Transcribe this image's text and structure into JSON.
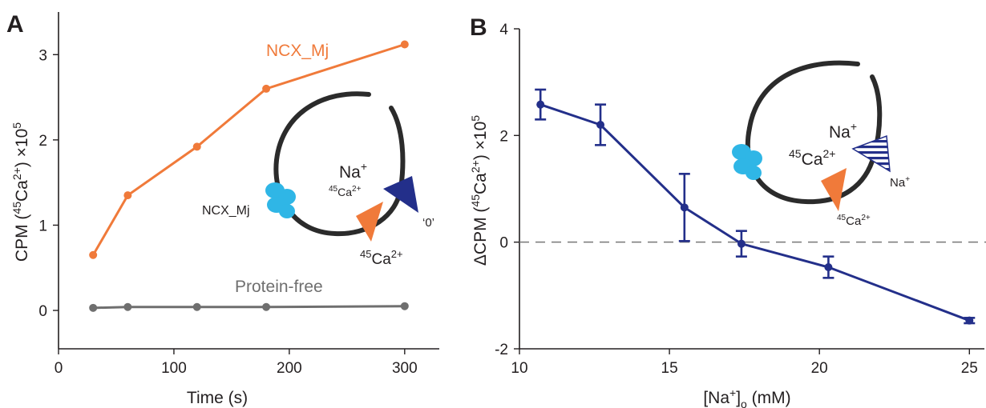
{
  "figure": {
    "panel_a_label": "A",
    "panel_b_label": "B"
  },
  "chart_data": [
    {
      "type": "line",
      "panel": "A",
      "xlabel": "Time (s)",
      "ylabel": {
        "base": "CPM (",
        "sup1": "45",
        "mid": "Ca",
        "sup2": "2+",
        "tail": ") ×10",
        "sup3": "5"
      },
      "xlim": [
        0,
        330
      ],
      "ylim": [
        -0.45,
        3.5
      ],
      "xticks": [
        0,
        100,
        200,
        300
      ],
      "yticks": [
        0,
        1,
        2,
        3
      ],
      "grid": false,
      "series": [
        {
          "name": "NCX_Mj",
          "color": "#f07a3a",
          "x": [
            30,
            60,
            120,
            180,
            300
          ],
          "y": [
            0.65,
            1.35,
            1.92,
            2.6,
            3.12
          ]
        },
        {
          "name": "Protein-free",
          "color": "#6f6f6f",
          "x": [
            30,
            60,
            120,
            180,
            300
          ],
          "y": [
            0.03,
            0.04,
            0.04,
            0.04,
            0.05
          ]
        }
      ],
      "inset": {
        "transporter_label": "NCX_Mj",
        "na_label": "Na+",
        "ca_small_label": "45Ca2+",
        "zero_label": "'0'",
        "ca_large_label": "45Ca2+",
        "colors": {
          "vesicle": "#2b2b2b",
          "transporter": "#2fb6e6",
          "na_arrow": "#232f8a",
          "ca_arrow": "#f07a3a"
        }
      }
    },
    {
      "type": "line",
      "panel": "B",
      "xlabel": {
        "base": "[Na",
        "sup": "+",
        "tail": "]",
        "sub": "o",
        "unit": " (mM)"
      },
      "ylabel": {
        "base": "ΔCPM (",
        "sup1": "45",
        "mid": "Ca",
        "sup2": "2+",
        "tail": ") ×10",
        "sup3": "5"
      },
      "xlim": [
        10,
        25.5
      ],
      "ylim": [
        -2,
        4
      ],
      "xticks": [
        10,
        15,
        20,
        25
      ],
      "yticks": [
        -2,
        0,
        2,
        4
      ],
      "ytick_labels": [
        "-2",
        "0",
        "2",
        "4"
      ],
      "grid": false,
      "reference_line": {
        "y": 0,
        "style": "dashed",
        "color": "#777777"
      },
      "series": [
        {
          "color": "#232f8a",
          "x": [
            10.7,
            12.7,
            15.5,
            17.4,
            20.3,
            25.0
          ],
          "y": [
            2.58,
            2.2,
            0.65,
            -0.03,
            -0.47,
            -1.47
          ],
          "err": [
            0.28,
            0.38,
            0.63,
            0.24,
            0.2,
            0.05
          ]
        }
      ],
      "inset": {
        "na_large_label": "Na+",
        "ca_large_label": "45Ca2+",
        "na_small_label": "Na+",
        "ca_small_label": "45Ca2+",
        "colors": {
          "vesicle": "#2b2b2b",
          "transporter": "#2fb6e6",
          "na_arrow": "#232f8a",
          "ca_arrow": "#f07a3a"
        }
      }
    }
  ]
}
